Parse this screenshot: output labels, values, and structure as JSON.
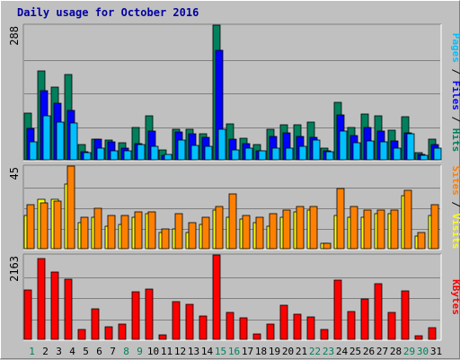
{
  "chart_data": {
    "title": "Daily usage for October 2016",
    "type": "bar",
    "x_labels": [
      "1",
      "2",
      "3",
      "4",
      "5",
      "6",
      "7",
      "8",
      "9",
      "10",
      "11",
      "12",
      "13",
      "14",
      "15",
      "16",
      "17",
      "18",
      "19",
      "20",
      "21",
      "22",
      "23",
      "24",
      "25",
      "26",
      "27",
      "28",
      "29",
      "30",
      "31"
    ],
    "weekend_days": [
      "1",
      "8",
      "9",
      "15",
      "16",
      "22",
      "23",
      "29",
      "30"
    ],
    "colors": {
      "hits": "#00805c",
      "files": "#0000ff",
      "pages": "#00c0ff",
      "visits": "#ffff00",
      "sites": "#ff8000",
      "kbytes": "#ff0000",
      "weekday_label": "#000000",
      "weekend_label": "#00805c"
    },
    "panels": [
      {
        "id": "top",
        "ymax_label": "288",
        "ylim": [
          0,
          288
        ],
        "legend": [
          {
            "text": "Pages",
            "color": "#00c0ff"
          },
          {
            "text": " / ",
            "color": "#000000"
          },
          {
            "text": "Files",
            "color": "#0000ff"
          },
          {
            "text": " / ",
            "color": "#000000"
          },
          {
            "text": "Hits",
            "color": "#00805c"
          }
        ],
        "series": [
          {
            "name": "Hits",
            "color": "#00805c",
            "values": [
              100,
              190,
              155,
              182,
              32,
              45,
              43,
              36,
              70,
              95,
              22,
              66,
              65,
              56,
              288,
              76,
              47,
              32,
              66,
              75,
              75,
              80,
              24,
              122,
              70,
              97,
              95,
              64,
              92,
              16,
              45
            ]
          },
          {
            "name": "Files",
            "color": "#0000ff",
            "values": [
              68,
              148,
              120,
              105,
              18,
              45,
              38,
              24,
              35,
              62,
              10,
              60,
              56,
              48,
              234,
              45,
              35,
              20,
              50,
              58,
              50,
              48,
              20,
              96,
              52,
              70,
              62,
              40,
              58,
              12,
              32
            ]
          },
          {
            "name": "Pages",
            "color": "#00c0ff",
            "values": [
              38,
              95,
              80,
              78,
              16,
              25,
              20,
              20,
              32,
              28,
              12,
              42,
              30,
              28,
              65,
              22,
              25,
              20,
              24,
              25,
              28,
              42,
              18,
              62,
              36,
              40,
              38,
              25,
              55,
              10,
              24
            ]
          }
        ]
      },
      {
        "id": "middle",
        "ymax_label": "45",
        "ylim": [
          0,
          45
        ],
        "legend": [
          {
            "text": "Sites",
            "color": "#ff8000"
          },
          {
            "text": " / ",
            "color": "#000000"
          },
          {
            "text": "Visits",
            "color": "#ffff00"
          }
        ],
        "series": [
          {
            "name": "Visits",
            "color": "#ffff00",
            "values": [
              18,
              27,
              27,
              35,
              14,
              17,
              12,
              13,
              17,
              19,
              9,
              11,
              9,
              13,
              21,
              17,
              16,
              14,
              12,
              17,
              20,
              21,
              3,
              18,
              17,
              17,
              19,
              19,
              29,
              7,
              18
            ]
          },
          {
            "name": "Sites",
            "color": "#ff8000",
            "values": [
              24,
              25,
              26,
              45,
              17,
              22,
              18,
              18,
              20,
              20,
              11,
              19,
              14,
              17,
              23,
              30,
              18,
              17,
              19,
              21,
              23,
              23,
              3,
              33,
              23,
              21,
              21,
              21,
              32,
              9,
              24
            ]
          }
        ]
      },
      {
        "id": "bottom",
        "ymax_label": "2163",
        "ylim": [
          0,
          2163
        ],
        "legend": [
          {
            "text": "KBytes",
            "color": "#ff0000"
          }
        ],
        "series": [
          {
            "name": "KBytes",
            "color": "#ff0000",
            "values": [
              1270,
              2080,
              1730,
              1550,
              245,
              790,
              320,
              395,
              1230,
              1290,
              120,
              970,
              905,
              600,
              2163,
              680,
              550,
              130,
              390,
              870,
              650,
              570,
              245,
              1530,
              710,
              1030,
              1420,
              700,
              1250,
              90,
              300
            ]
          }
        ]
      }
    ]
  }
}
